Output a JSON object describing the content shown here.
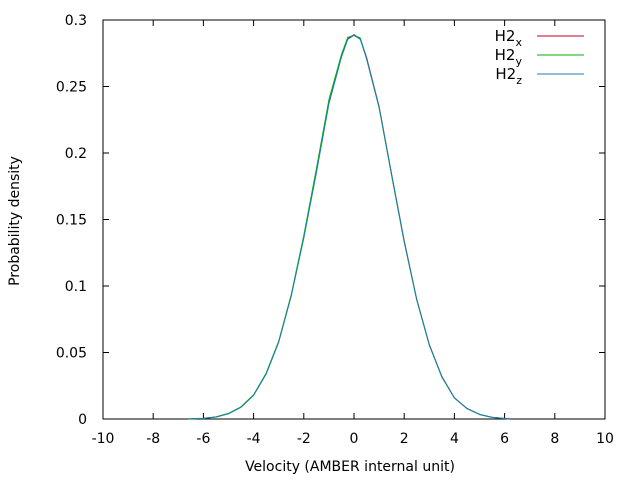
{
  "chart_data": {
    "type": "line",
    "title": "",
    "xlabel": "Velocity (AMBER internal unit)",
    "ylabel": "Probability density",
    "xlim": [
      -10,
      10
    ],
    "ylim": [
      0,
      0.3
    ],
    "xticks": [
      "-10",
      "-8",
      "-6",
      "-4",
      "-2",
      "0",
      "2",
      "4",
      "6",
      "8",
      "10"
    ],
    "yticks": [
      "0",
      "0.05",
      "0.1",
      "0.15",
      "0.2",
      "0.25",
      "0.3"
    ],
    "grid": false,
    "legend_position": "top-right",
    "x": [
      -6.6,
      -6.0,
      -5.5,
      -5.0,
      -4.5,
      -4.0,
      -3.5,
      -3.0,
      -2.5,
      -2.0,
      -1.5,
      -1.0,
      -0.5,
      -0.25,
      0.0,
      0.25,
      0.5,
      1.0,
      1.5,
      2.0,
      2.5,
      3.0,
      3.5,
      4.0,
      4.5,
      5.0,
      5.5,
      6.0,
      6.2
    ],
    "series": [
      {
        "name": "H2",
        "subscript": "x",
        "color": "#c0002a",
        "values": [
          0.0001,
          0.0005,
          0.0015,
          0.004,
          0.009,
          0.018,
          0.034,
          0.058,
          0.093,
          0.137,
          0.186,
          0.238,
          0.273,
          0.286,
          0.289,
          0.286,
          0.272,
          0.235,
          0.184,
          0.134,
          0.09,
          0.056,
          0.032,
          0.016,
          0.008,
          0.0035,
          0.0013,
          0.0004,
          0.0002
        ]
      },
      {
        "name": "H2",
        "subscript": "y",
        "color": "#00b000",
        "values": [
          0.0001,
          0.0006,
          0.0016,
          0.0042,
          0.0092,
          0.0182,
          0.0345,
          0.0585,
          0.0935,
          0.138,
          0.188,
          0.24,
          0.274,
          0.287,
          0.2885,
          0.2865,
          0.271,
          0.234,
          0.183,
          0.133,
          0.0895,
          0.0555,
          0.0315,
          0.0158,
          0.0078,
          0.0034,
          0.0012,
          0.0004,
          0.0001
        ]
      },
      {
        "name": "H2",
        "subscript": "z",
        "color": "#1a7fb8",
        "values": [
          0.0001,
          0.0005,
          0.0014,
          0.0039,
          0.0088,
          0.0178,
          0.0338,
          0.0578,
          0.0925,
          0.136,
          0.185,
          0.237,
          0.272,
          0.2855,
          0.2885,
          0.2855,
          0.271,
          0.2345,
          0.1835,
          0.1335,
          0.0898,
          0.0558,
          0.0318,
          0.0159,
          0.0079,
          0.0034,
          0.0012,
          0.0004,
          0.0001
        ]
      }
    ]
  }
}
